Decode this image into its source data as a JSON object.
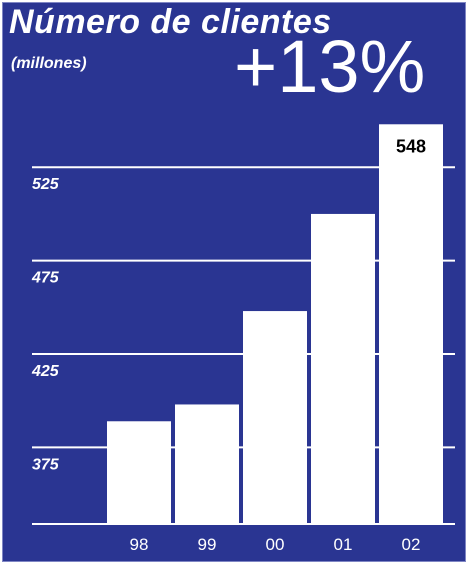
{
  "title": "Número de clientes",
  "subtitle": "(millones)",
  "growth_label": "+13%",
  "colors": {
    "background": "#2a3592",
    "bars": "#ffffff",
    "text": "#ffffff",
    "value_label": "#000000"
  },
  "chart_data": {
    "type": "bar",
    "categories": [
      "98",
      "99",
      "00",
      "01",
      "02"
    ],
    "values": [
      389,
      398,
      448,
      500,
      548
    ],
    "ylim": [
      334,
      561
    ],
    "yticks": [
      375,
      425,
      475,
      525
    ],
    "grid": true,
    "data_labels": {
      "02": "548"
    }
  }
}
